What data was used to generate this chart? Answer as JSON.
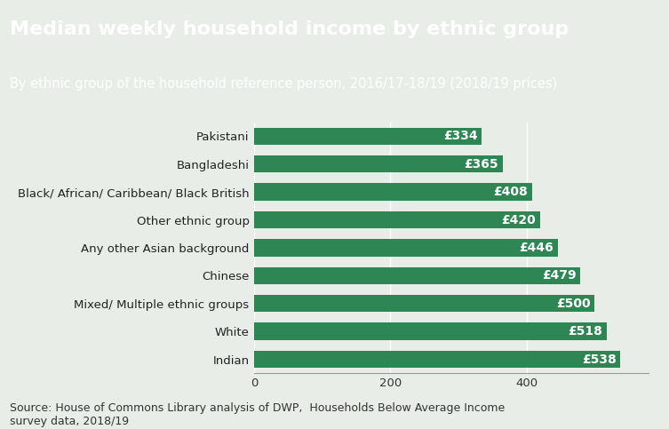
{
  "title": "Median weekly household income by ethnic group",
  "subtitle": "By ethnic group of the household reference person, 2016/17-18/19 (2018/19 prices)",
  "categories": [
    "Indian",
    "White",
    "Mixed/ Multiple ethnic groups",
    "Chinese",
    "Any other Asian background",
    "Other ethnic group",
    "Black/ African/ Caribbean/ Black British",
    "Bangladeshi",
    "Pakistani"
  ],
  "values": [
    538,
    518,
    500,
    479,
    446,
    420,
    408,
    365,
    334
  ],
  "bar_color": "#2d8653",
  "background_color": "#e8ede8",
  "header_bg_color": "#2d7a4f",
  "title_color": "#ffffff",
  "subtitle_color": "#ffffff",
  "source_text": "Source: House of Commons Library analysis of DWP,  Households Below Average Income\nsurvey data, 2018/19",
  "xlim": [
    0,
    580
  ],
  "xticks": [
    0,
    200,
    400
  ],
  "title_fontsize": 16,
  "subtitle_fontsize": 10.5,
  "bar_label_fontsize": 10,
  "tick_label_fontsize": 9.5,
  "source_fontsize": 9
}
